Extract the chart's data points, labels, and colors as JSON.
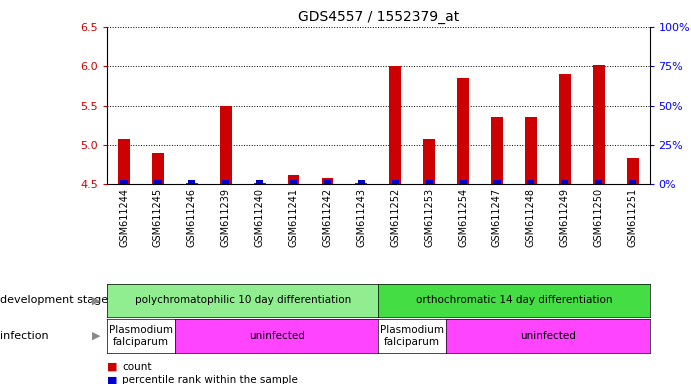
{
  "title": "GDS4557 / 1552379_at",
  "samples": [
    "GSM611244",
    "GSM611245",
    "GSM611246",
    "GSM611239",
    "GSM611240",
    "GSM611241",
    "GSM611242",
    "GSM611243",
    "GSM611252",
    "GSM611253",
    "GSM611254",
    "GSM611247",
    "GSM611248",
    "GSM611249",
    "GSM611250",
    "GSM611251"
  ],
  "count_values": [
    5.07,
    4.9,
    4.52,
    5.5,
    4.52,
    4.62,
    4.58,
    4.52,
    6.0,
    5.08,
    5.85,
    5.35,
    5.35,
    5.9,
    6.02,
    4.83
  ],
  "percentile_values": [
    3,
    2,
    1,
    4,
    1,
    1,
    1,
    1,
    5,
    3,
    7,
    4,
    4,
    6,
    8,
    2
  ],
  "ymin": 4.5,
  "ymax": 6.5,
  "y_ticks": [
    4.5,
    5.0,
    5.5,
    6.0,
    6.5
  ],
  "right_yticks": [
    0,
    25,
    50,
    75,
    100
  ],
  "right_ytick_labels": [
    "0%",
    "25%",
    "50%",
    "75%",
    "100%"
  ],
  "count_color": "#cc0000",
  "percentile_color": "#0000cc",
  "dev_stage_groups": [
    {
      "label": "polychromatophilic 10 day differentiation",
      "start": 0,
      "end": 8,
      "color": "#90ee90"
    },
    {
      "label": "orthochromatic 14 day differentiation",
      "start": 8,
      "end": 16,
      "color": "#44dd44"
    }
  ],
  "infection_groups": [
    {
      "label": "Plasmodium\nfalciparum",
      "start": 0,
      "end": 2,
      "color": "#ffffff"
    },
    {
      "label": "uninfected",
      "start": 2,
      "end": 8,
      "color": "#ff44ff"
    },
    {
      "label": "Plasmodium\nfalciparum",
      "start": 8,
      "end": 10,
      "color": "#ffffff"
    },
    {
      "label": "uninfected",
      "start": 10,
      "end": 16,
      "color": "#ff44ff"
    }
  ],
  "dev_stage_label": "development stage",
  "infection_label": "infection",
  "figsize": [
    6.91,
    3.84
  ],
  "dpi": 100
}
